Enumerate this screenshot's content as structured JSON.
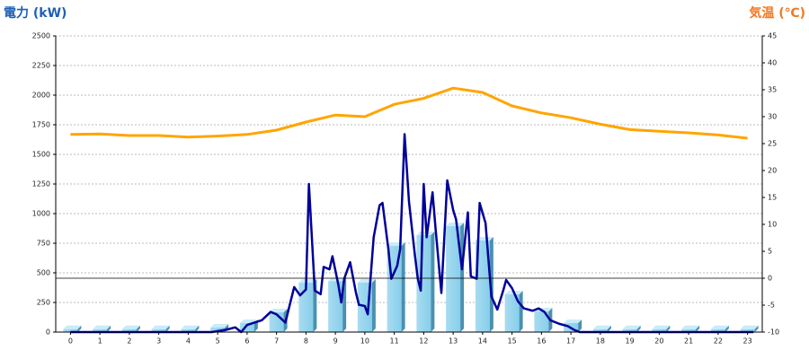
{
  "chart_data": {
    "type": "combo",
    "title": "電力 (kW)",
    "y2_title": "気温 (℃)",
    "categories": [
      "0",
      "1",
      "2",
      "3",
      "4",
      "5",
      "6",
      "7",
      "8",
      "9",
      "10",
      "11",
      "12",
      "13",
      "14",
      "15",
      "16",
      "17",
      "18",
      "19",
      "20",
      "21",
      "22",
      "23"
    ],
    "ylim": [
      0,
      2500
    ],
    "yticks": [
      0,
      250,
      500,
      750,
      1000,
      1250,
      1500,
      1750,
      2000,
      2250,
      2500
    ],
    "y2lim": [
      -10,
      45
    ],
    "y2ticks": [
      -10,
      -5,
      0,
      5,
      10,
      15,
      20,
      25,
      30,
      35,
      40,
      45
    ],
    "grid": true,
    "reference_y2": 0,
    "series": [
      {
        "kind": "bar",
        "color": "#87ceeb",
        "values": [
          25,
          25,
          25,
          25,
          25,
          38,
          76,
          167,
          417,
          430,
          417,
          727,
          818,
          894,
          773,
          318,
          174,
          76,
          25,
          25,
          25,
          25,
          25,
          25
        ]
      },
      {
        "kind": "line",
        "color": "#000099",
        "x": [
          0,
          4.8,
          5.3,
          5.6,
          5.8,
          6.0,
          6.5,
          6.8,
          7.0,
          7.3,
          7.6,
          7.8,
          8.0,
          8.1,
          8.3,
          8.5,
          8.6,
          8.8,
          8.9,
          9.1,
          9.2,
          9.3,
          9.5,
          9.7,
          9.8,
          10.0,
          10.1,
          10.3,
          10.5,
          10.6,
          10.8,
          10.9,
          11.1,
          11.2,
          11.35,
          11.5,
          11.7,
          11.8,
          11.9,
          12.0,
          12.1,
          12.3,
          12.4,
          12.6,
          12.7,
          12.8,
          13.0,
          13.1,
          13.3,
          13.5,
          13.6,
          13.8,
          13.9,
          14.1,
          14.3,
          14.5,
          14.7,
          14.8,
          15.0,
          15.2,
          15.4,
          15.7,
          15.9,
          16.1,
          16.3,
          16.6,
          16.9,
          17.1,
          17.3,
          23.2
        ],
        "values": [
          0,
          0,
          20,
          40,
          0,
          60,
          100,
          170,
          150,
          80,
          380,
          310,
          360,
          1250,
          350,
          320,
          550,
          530,
          640,
          400,
          250,
          450,
          590,
          330,
          230,
          220,
          150,
          800,
          1070,
          1090,
          700,
          450,
          560,
          700,
          1670,
          1100,
          650,
          450,
          350,
          1250,
          800,
          1180,
          880,
          330,
          800,
          1280,
          1030,
          950,
          530,
          1010,
          470,
          450,
          1090,
          920,
          300,
          190,
          350,
          440,
          370,
          260,
          200,
          180,
          200,
          170,
          100,
          70,
          50,
          20,
          0,
          0
        ]
      },
      {
        "kind": "line",
        "axis": "y2",
        "color": "#ffa500",
        "values": [
          26.7,
          26.8,
          26.5,
          26.5,
          26.2,
          26.4,
          26.7,
          27.5,
          29,
          30.3,
          30,
          32.3,
          33.4,
          35.3,
          34.5,
          32,
          30.7,
          29.8,
          28.6,
          27.6,
          27.3,
          27,
          26.6,
          26
        ]
      }
    ]
  }
}
